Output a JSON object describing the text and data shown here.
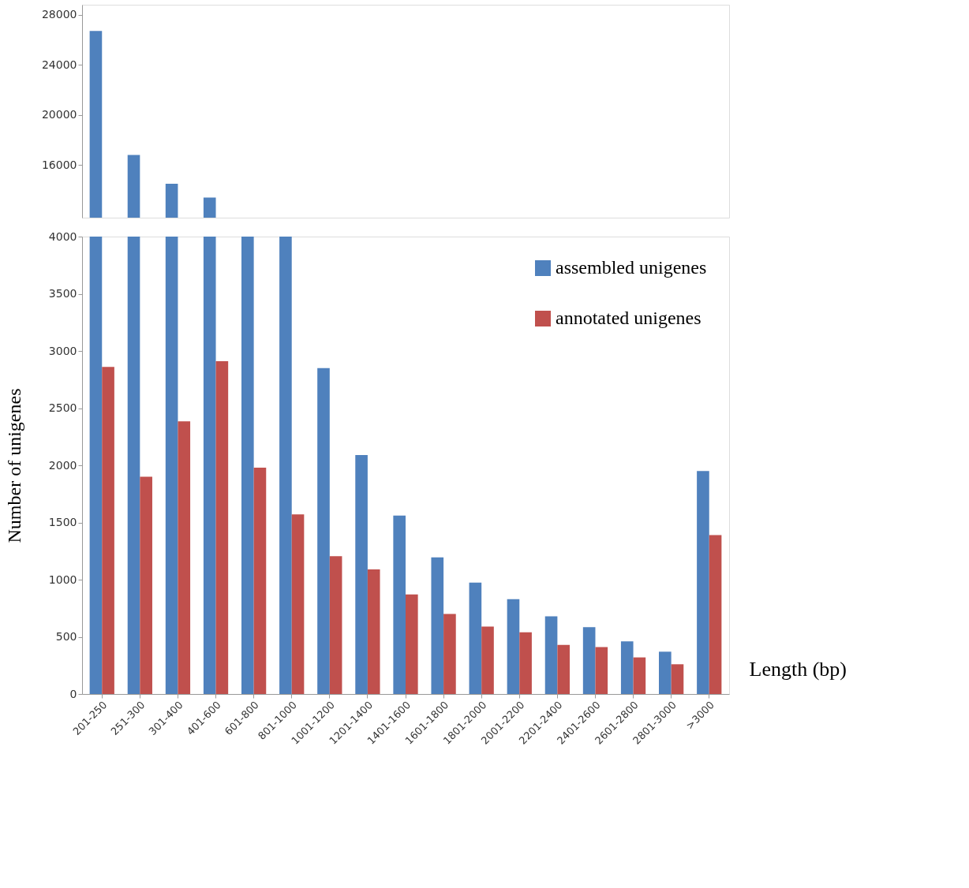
{
  "chart_data": [
    {
      "type": "bar",
      "categories": [
        null,
        null,
        null,
        null,
        null,
        null,
        null,
        null,
        null,
        null,
        null,
        null,
        null,
        null,
        null,
        null,
        null
      ],
      "series": [
        {
          "color": "#4f81bd",
          "values": [
            26700,
            16800,
            14500,
            13400,
            null,
            null,
            null,
            null,
            null,
            null,
            null,
            null,
            null,
            null,
            null,
            null,
            null
          ]
        },
        {
          "color": "#c0504d",
          "values": [
            null,
            null,
            null,
            null,
            null,
            null,
            null,
            null,
            null,
            null,
            null,
            null,
            null,
            null,
            null,
            null,
            null
          ]
        }
      ],
      "ylim": [
        11800,
        28800
      ],
      "yticks": [
        16000,
        20000,
        24000,
        28000
      ],
      "tick_labels": "y",
      "grid": false
    },
    {
      "type": "bar",
      "categories": [
        "201-250",
        "251-300",
        "301-400",
        "401-600",
        "601-800",
        "801-1000",
        "1001-1200",
        "1201-1400",
        "1401-1600",
        "1601-1800",
        "1801-2000",
        "2001-2200",
        "2201-2400",
        "2401-2600",
        "2601-2800",
        "2801-3000",
        ">3000"
      ],
      "series": [
        {
          "name": "assembled unigenes",
          "color": "#4f81bd",
          "values": [
            4000,
            4000,
            4000,
            4000,
            4000,
            4000,
            2850,
            2090,
            1560,
            1195,
            975,
            830,
            680,
            585,
            460,
            370,
            1950
          ]
        },
        {
          "name": "annotated unigenes",
          "color": "#c0504d",
          "values": [
            2860,
            1900,
            2385,
            2910,
            1980,
            1570,
            1205,
            1090,
            870,
            700,
            590,
            540,
            430,
            410,
            320,
            260,
            1390
          ]
        }
      ],
      "ylim": [
        0,
        4000
      ],
      "yticks": [
        0,
        500,
        1000,
        1500,
        2000,
        2500,
        3000,
        3500,
        4000
      ],
      "xlabel": "Length (bp)",
      "ylabel": "Number of unigenes",
      "legend": "top right",
      "grid": false
    }
  ]
}
